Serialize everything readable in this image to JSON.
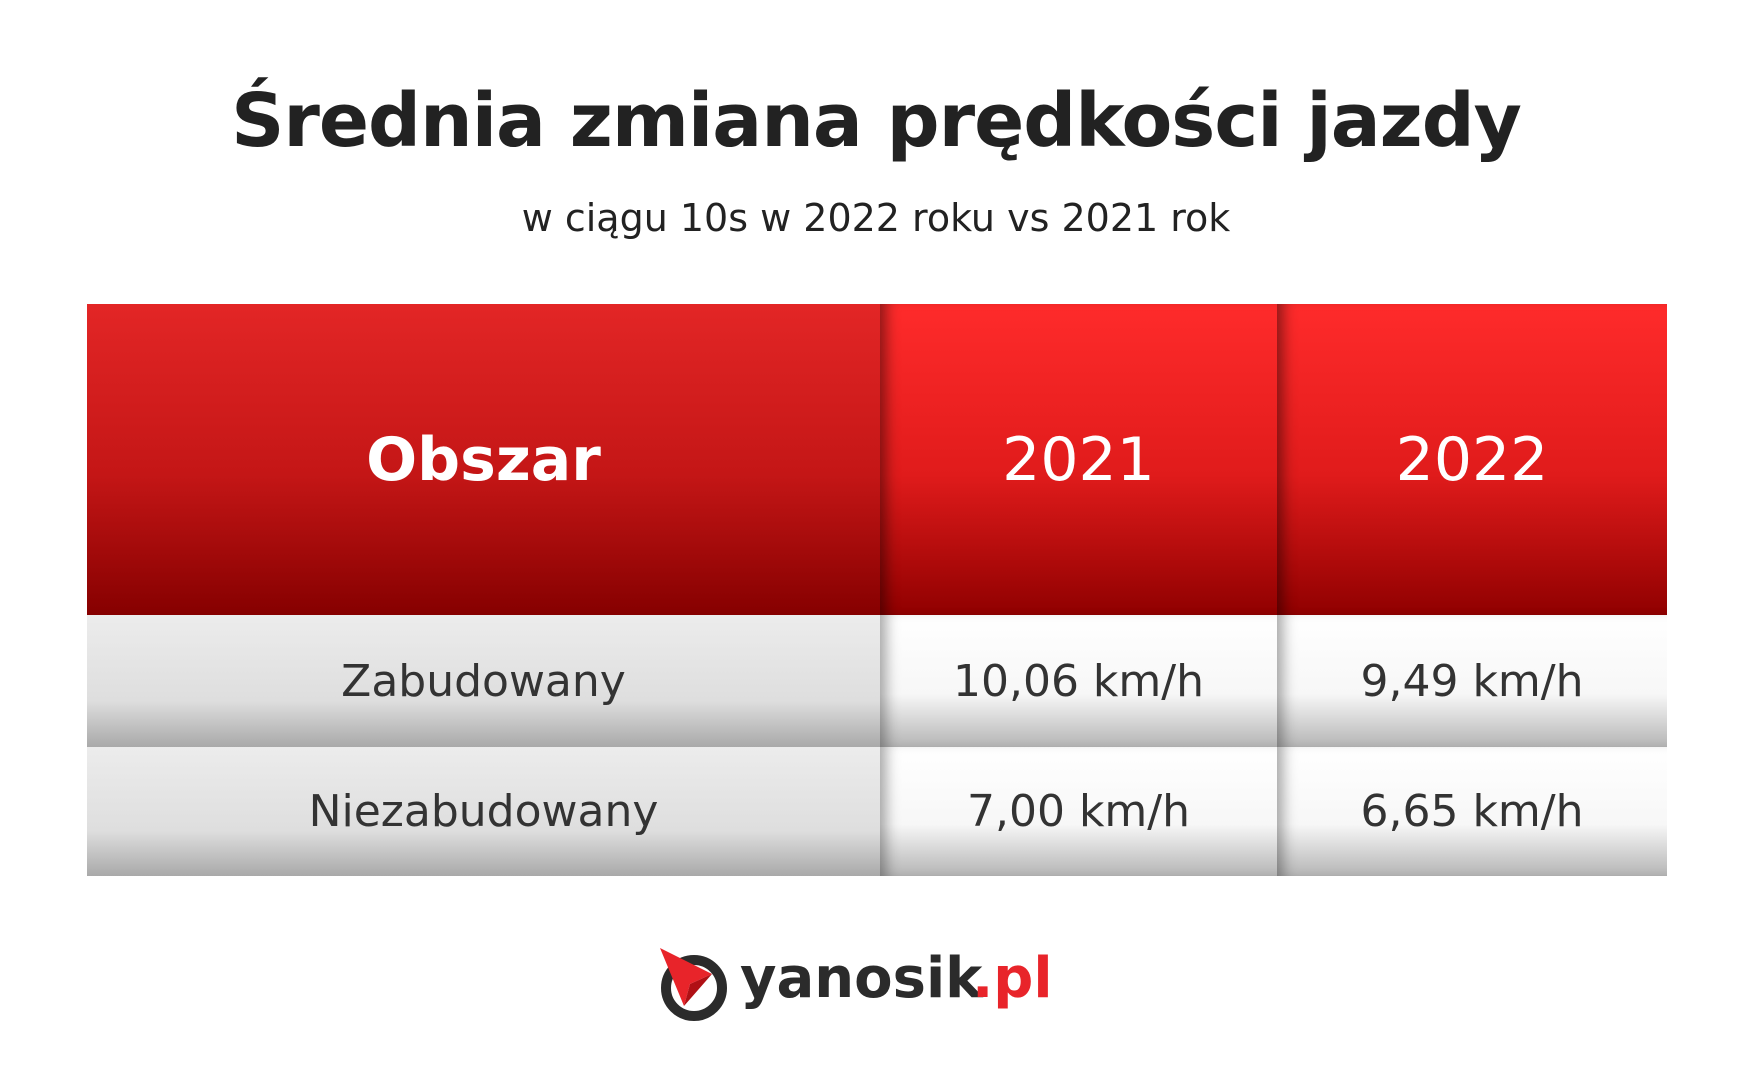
{
  "header": {
    "title": "Średnia zmiana prędkości jazdy",
    "subtitle": "w ciągu 10s w 2022 roku vs 2021 rok"
  },
  "table": {
    "columns": [
      "Obszar",
      "2021",
      "2022"
    ],
    "rows": [
      [
        "Zabudowany",
        "10,06 km/h",
        "9,49 km/h"
      ],
      [
        "Niezabudowany",
        "7,00 km/h",
        "6,65 km/h"
      ]
    ]
  },
  "footer": {
    "logo": [
      "yanosik",
      ".pl"
    ]
  }
}
